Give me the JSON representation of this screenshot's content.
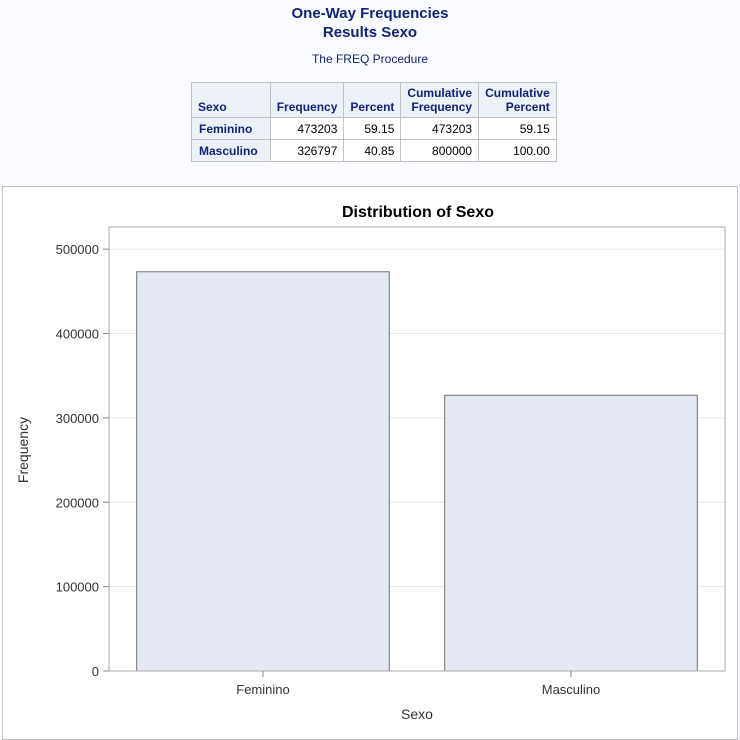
{
  "header": {
    "title_line1": "One-Way Frequencies",
    "title_line2": "Results Sexo",
    "procedure": "The FREQ Procedure"
  },
  "table": {
    "headers": {
      "var": "Sexo",
      "frequency": "Frequency",
      "percent": "Percent",
      "cum_freq_1": "Cumulative",
      "cum_freq_2": "Frequency",
      "cum_pct_1": "Cumulative",
      "cum_pct_2": "Percent"
    },
    "rows": [
      {
        "label": "Feminino",
        "frequency": "473203",
        "percent": "59.15",
        "cum_frequency": "473203",
        "cum_percent": "59.15"
      },
      {
        "label": "Masculino",
        "frequency": "326797",
        "percent": "40.85",
        "cum_frequency": "800000",
        "cum_percent": "100.00"
      }
    ]
  },
  "chart_data": {
    "type": "bar",
    "title": "Distribution of Sexo",
    "xlabel": "Sexo",
    "ylabel": "Frequency",
    "categories": [
      "Feminino",
      "Masculino"
    ],
    "values": [
      473203,
      326797
    ],
    "ylim": [
      0,
      500000
    ],
    "yticks": [
      0,
      100000,
      200000,
      300000,
      400000,
      500000
    ],
    "ytick_labels": [
      "0",
      "100000",
      "200000",
      "300000",
      "400000",
      "500000"
    ],
    "grid": true,
    "bar_fill": "#e4e9f3",
    "bar_stroke": "#6f6f6f"
  }
}
